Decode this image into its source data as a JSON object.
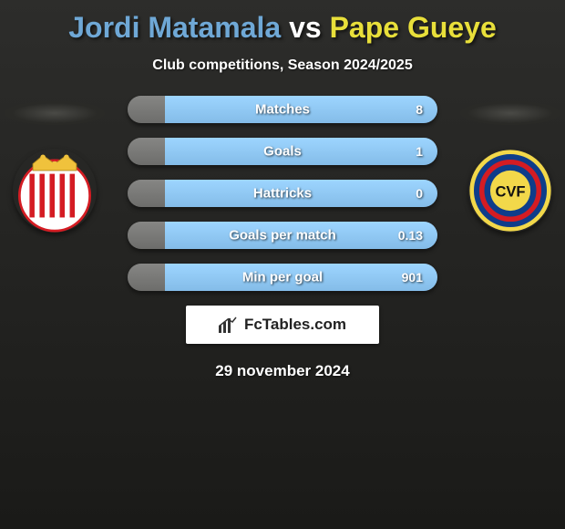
{
  "title": {
    "player1": "Jordi Matamala",
    "vs": " vs ",
    "player2": "Pape Gueye",
    "color_p1": "#6fa8d6",
    "color_vs": "#ffffff",
    "color_p2": "#e8df3a"
  },
  "subtitle": "Club competitions, Season 2024/2025",
  "stats": [
    {
      "label": "Matches",
      "left_value": "",
      "right_value": "8"
    },
    {
      "label": "Goals",
      "left_value": "",
      "right_value": "1"
    },
    {
      "label": "Hattricks",
      "left_value": "",
      "right_value": "0"
    },
    {
      "label": "Goals per match",
      "left_value": "",
      "right_value": "0.13"
    },
    {
      "label": "Min per goal",
      "left_value": "",
      "right_value": "901"
    }
  ],
  "bar": {
    "color_left": "#6d6d6b",
    "color_right": "#84bce8",
    "left_width_pct": 12,
    "right_width_pct": 88
  },
  "crests": {
    "left": {
      "bg": "#ffffff",
      "stripe1": "#d41c23",
      "stripe2": "#ffffff",
      "crown": "#f0c23c"
    },
    "right": {
      "bg": "#0e3d8a",
      "rim": "#f2d84a",
      "band": "#d41c23",
      "letters": "CVF",
      "letters_color": "#111"
    }
  },
  "branding": {
    "text": "FcTables.com",
    "icon_color": "#333"
  },
  "date": "29 november 2024"
}
